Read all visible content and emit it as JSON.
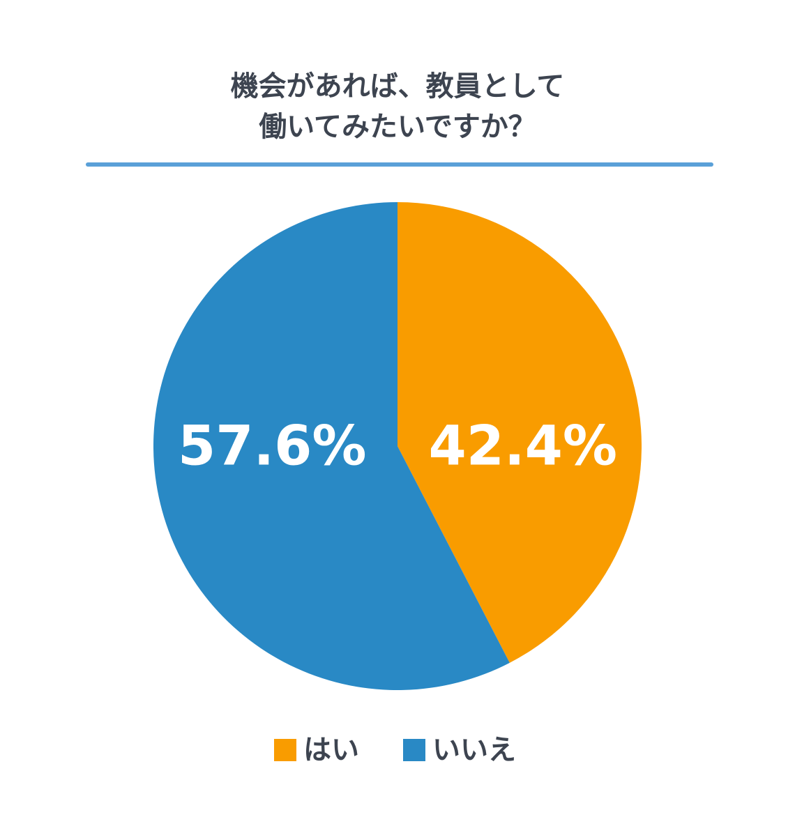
{
  "chart_data": {
    "type": "pie",
    "title": [
      "機会があれば、教員として",
      "働いてみたいですか？"
    ],
    "categories": [
      "はい",
      "いいえ"
    ],
    "values": [
      42.4,
      57.6
    ],
    "value_labels": [
      "42.4%",
      "57.6%"
    ],
    "colors": [
      "#f99c00",
      "#2989c5"
    ]
  }
}
